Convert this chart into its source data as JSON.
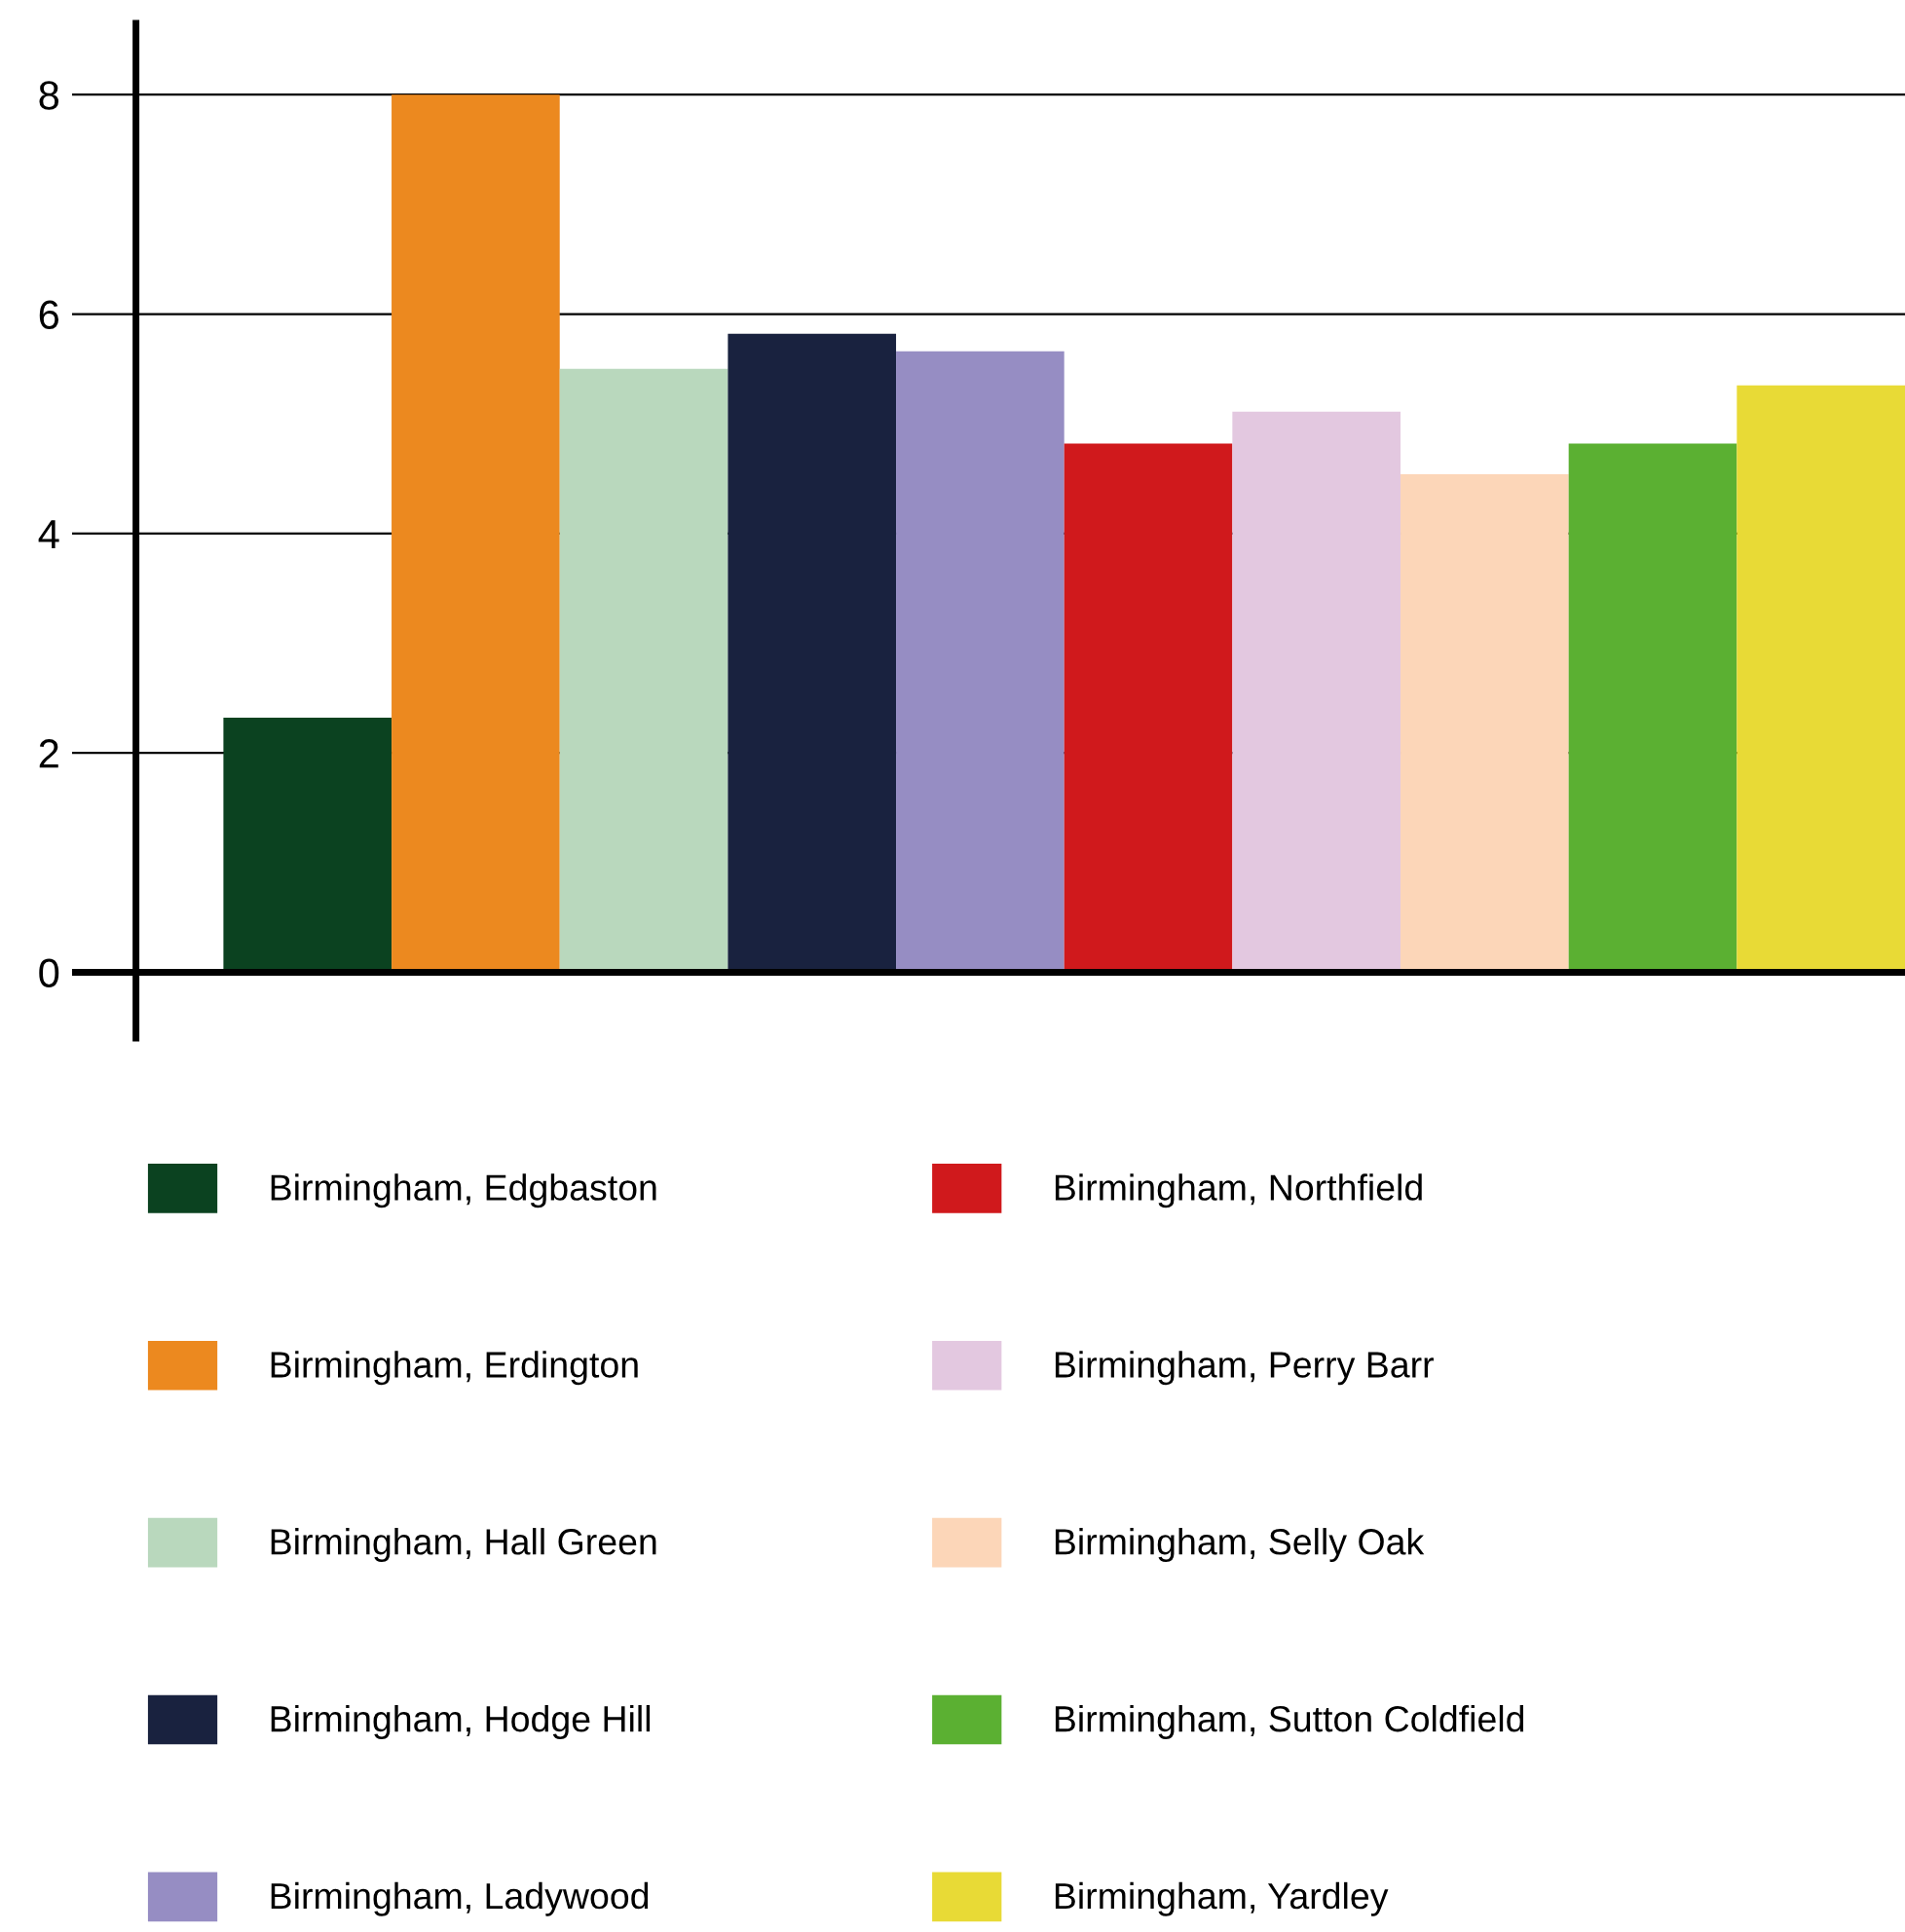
{
  "chart_data": {
    "type": "bar",
    "categories": [
      null
    ],
    "series": [
      {
        "name": "Birmingham, Edgbaston",
        "color": "#0b4220",
        "values": [
          2.32
        ]
      },
      {
        "name": "Birmingham, Erdington",
        "color": "#ec891f",
        "values": [
          8.0
        ]
      },
      {
        "name": "Birmingham, Hall Green",
        "color": "#b9d8bd",
        "values": [
          5.5
        ]
      },
      {
        "name": "Birmingham, Hodge Hill",
        "color": "#19223f",
        "values": [
          5.82
        ]
      },
      {
        "name": "Birmingham, Ladywood",
        "color": "#968dc3",
        "values": [
          5.66
        ]
      },
      {
        "name": "Birmingham, Northfield",
        "color": "#d0191c",
        "values": [
          4.82
        ]
      },
      {
        "name": "Birmingham, Perry Barr",
        "color": "#e3c8e0",
        "values": [
          5.11
        ]
      },
      {
        "name": "Birmingham, Selly Oak",
        "color": "#fcd6b8",
        "values": [
          4.54
        ]
      },
      {
        "name": "Birmingham, Sutton Coldfield",
        "color": "#5bb032",
        "values": [
          4.82
        ]
      },
      {
        "name": "Birmingham, Yardley",
        "color": "#e8da36",
        "values": [
          5.35
        ]
      }
    ],
    "ylim": [
      -0.6,
      8.65
    ],
    "yticks": [
      0,
      2,
      4,
      6,
      8
    ],
    "grid": "y",
    "legend": "bottom"
  }
}
